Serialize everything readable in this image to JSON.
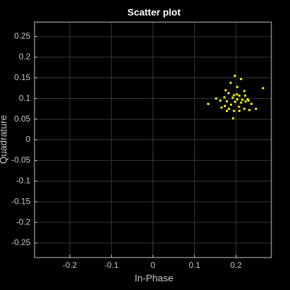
{
  "chart_data": {
    "type": "scatter",
    "title": "Scatter plot",
    "x_label": "In-Phase",
    "y_label": "Quadrature",
    "x": [
      0.265,
      0.133,
      0.197,
      0.212,
      0.187,
      0.203,
      0.175,
      0.22,
      0.182,
      0.195,
      0.208,
      0.222,
      0.172,
      0.152,
      0.192,
      0.203,
      0.215,
      0.228,
      0.178,
      0.198,
      0.212,
      0.223,
      0.188,
      0.173,
      0.207,
      0.237,
      0.165,
      0.183,
      0.195,
      0.22,
      0.232,
      0.248,
      0.178,
      0.208,
      0.193,
      0.162,
      0.23,
      0.202
    ],
    "y": [
      0.125,
      0.087,
      0.155,
      0.147,
      0.138,
      0.128,
      0.12,
      0.118,
      0.113,
      0.108,
      0.107,
      0.107,
      0.103,
      0.1,
      0.102,
      0.098,
      0.097,
      0.098,
      0.093,
      0.092,
      0.09,
      0.093,
      0.085,
      0.082,
      0.08,
      0.087,
      0.078,
      0.075,
      0.07,
      0.075,
      0.072,
      0.075,
      0.07,
      0.07,
      0.052,
      0.095,
      0.095,
      0.11
    ],
    "color": "#ffff00",
    "xlim": [
      -0.285,
      0.285
    ],
    "ylim": [
      -0.285,
      0.285
    ],
    "xticks": [
      -0.2,
      -0.1,
      0,
      0.1,
      0.2
    ],
    "yticks": [
      -0.25,
      -0.2,
      -0.15,
      -0.1,
      -0.05,
      0,
      0.05,
      0.1,
      0.15,
      0.2,
      0.25
    ],
    "grid": true
  }
}
